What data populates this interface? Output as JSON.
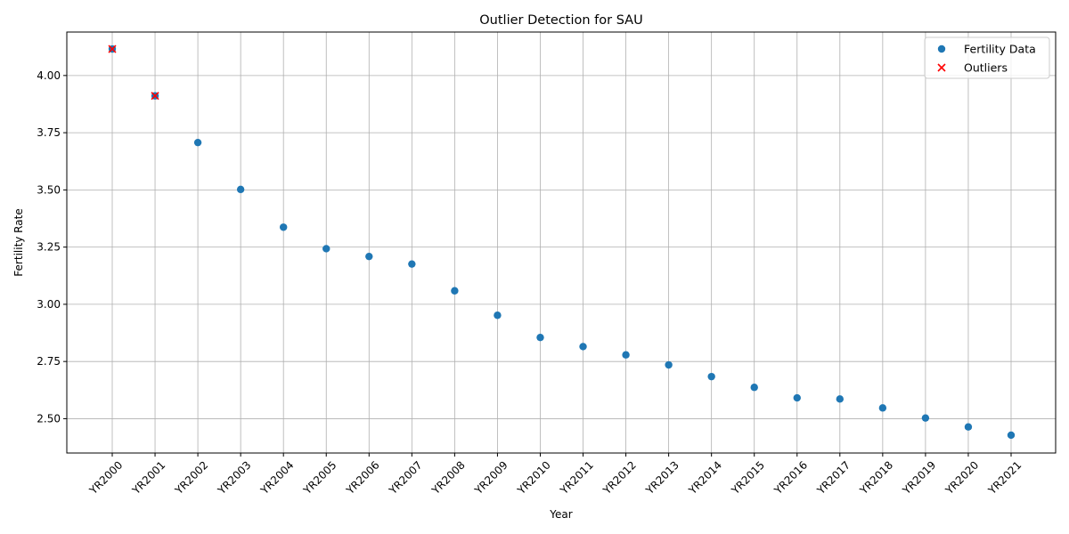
{
  "chart_data": {
    "type": "scatter",
    "title": "Outlier Detection for SAU",
    "xlabel": "Year",
    "ylabel": "Fertility Rate",
    "categories": [
      "YR2000",
      "YR2001",
      "YR2002",
      "YR2003",
      "YR2004",
      "YR2005",
      "YR2006",
      "YR2007",
      "YR2008",
      "YR2009",
      "YR2010",
      "YR2011",
      "YR2012",
      "YR2013",
      "YR2014",
      "YR2015",
      "YR2016",
      "YR2017",
      "YR2018",
      "YR2019",
      "YR2020",
      "YR2021"
    ],
    "ylim": [
      2.35,
      4.19
    ],
    "yticks": [
      2.5,
      2.75,
      3.0,
      3.25,
      3.5,
      3.75,
      4.0
    ],
    "ytick_labels": [
      "2.50",
      "2.75",
      "3.00",
      "3.25",
      "3.50",
      "3.75",
      "4.00"
    ],
    "grid": true,
    "legend_position": "top-right",
    "series": [
      {
        "name": "Fertility Data",
        "marker": "circle",
        "color": "#1f77b4",
        "values": [
          4.116,
          3.911,
          3.707,
          3.502,
          3.337,
          3.243,
          3.209,
          3.176,
          3.059,
          2.952,
          2.855,
          2.815,
          2.779,
          2.735,
          2.684,
          2.637,
          2.591,
          2.586,
          2.547,
          2.503,
          2.464,
          2.428
        ]
      },
      {
        "name": "Outliers",
        "marker": "x",
        "color": "#ff0000",
        "categories": [
          "YR2000",
          "YR2001"
        ],
        "values": [
          4.116,
          3.911
        ]
      }
    ]
  }
}
